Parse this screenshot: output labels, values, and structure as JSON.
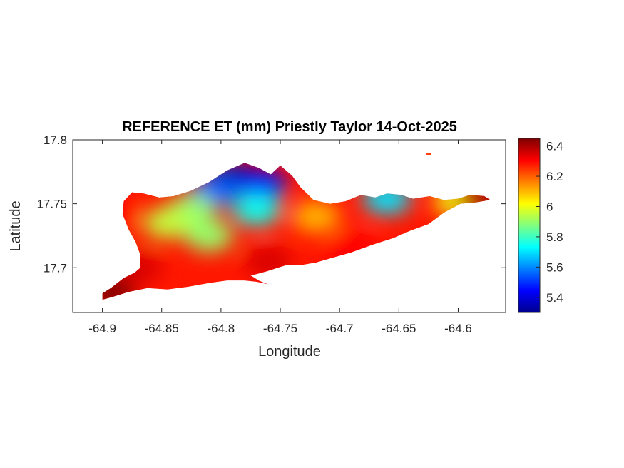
{
  "chart_data": {
    "type": "heatmap",
    "title": "REFERENCE ET (mm) Priestly Taylor 14-Oct-2025",
    "xlabel": "Longitude",
    "ylabel": "Latitude",
    "xlim": [
      -64.925,
      -64.56
    ],
    "ylim": [
      17.665,
      17.8
    ],
    "xticks": [
      -64.9,
      -64.85,
      -64.8,
      -64.75,
      -64.7,
      -64.65,
      -64.6
    ],
    "xtick_labels": [
      "-64.9",
      "-64.85",
      "-64.8",
      "-64.75",
      "-64.7",
      "-64.65",
      "-64.6"
    ],
    "yticks": [
      17.7,
      17.75,
      17.8
    ],
    "ytick_labels": [
      "17.7",
      "17.75",
      "17.8"
    ],
    "colormap": "jet",
    "clim": [
      5.3,
      6.45
    ],
    "colorbar_ticks": [
      5.4,
      5.6,
      5.8,
      6.0,
      6.2,
      6.4
    ],
    "colorbar_tick_labels": [
      "5.4",
      "5.6",
      "5.8",
      "6",
      "6.2",
      "6.4"
    ],
    "region_outline_lonlat": [
      [
        -64.9,
        17.68
      ],
      [
        -64.893,
        17.684
      ],
      [
        -64.882,
        17.692
      ],
      [
        -64.873,
        17.696
      ],
      [
        -64.868,
        17.7
      ],
      [
        -64.868,
        17.71
      ],
      [
        -64.872,
        17.72
      ],
      [
        -64.878,
        17.73
      ],
      [
        -64.883,
        17.742
      ],
      [
        -64.882,
        17.752
      ],
      [
        -64.875,
        17.759
      ],
      [
        -64.865,
        17.758
      ],
      [
        -64.852,
        17.755
      ],
      [
        -64.84,
        17.756
      ],
      [
        -64.826,
        17.76
      ],
      [
        -64.81,
        17.767
      ],
      [
        -64.795,
        17.776
      ],
      [
        -64.78,
        17.782
      ],
      [
        -64.768,
        17.778
      ],
      [
        -64.758,
        17.773
      ],
      [
        -64.75,
        17.78
      ],
      [
        -64.74,
        17.772
      ],
      [
        -64.733,
        17.763
      ],
      [
        -64.722,
        17.753
      ],
      [
        -64.708,
        17.75
      ],
      [
        -64.695,
        17.752
      ],
      [
        -64.682,
        17.757
      ],
      [
        -64.67,
        17.755
      ],
      [
        -64.66,
        17.758
      ],
      [
        -64.648,
        17.757
      ],
      [
        -64.638,
        17.754
      ],
      [
        -64.624,
        17.756
      ],
      [
        -64.612,
        17.753
      ],
      [
        -64.6,
        17.754
      ],
      [
        -64.59,
        17.757
      ],
      [
        -64.578,
        17.756
      ],
      [
        -64.573,
        17.753
      ],
      [
        -64.585,
        17.751
      ],
      [
        -64.598,
        17.75
      ],
      [
        -64.612,
        17.743
      ],
      [
        -64.625,
        17.734
      ],
      [
        -64.64,
        17.729
      ],
      [
        -64.655,
        17.723
      ],
      [
        -64.672,
        17.718
      ],
      [
        -64.69,
        17.712
      ],
      [
        -64.705,
        17.708
      ],
      [
        -64.72,
        17.704
      ],
      [
        -64.733,
        17.702
      ],
      [
        -64.745,
        17.702
      ],
      [
        -64.752,
        17.7
      ],
      [
        -64.762,
        17.697
      ],
      [
        -64.77,
        17.695
      ],
      [
        -64.775,
        17.694
      ],
      [
        -64.768,
        17.69
      ],
      [
        -64.76,
        17.687
      ],
      [
        -64.77,
        17.689
      ],
      [
        -64.78,
        17.69
      ],
      [
        -64.795,
        17.69
      ],
      [
        -64.81,
        17.688
      ],
      [
        -64.828,
        17.685
      ],
      [
        -64.845,
        17.683
      ],
      [
        -64.862,
        17.684
      ],
      [
        -64.878,
        17.681
      ],
      [
        -64.892,
        17.677
      ],
      [
        -64.9,
        17.675
      ]
    ],
    "field_centers": [
      {
        "lon": -64.79,
        "lat": 17.77,
        "value": 5.35
      },
      {
        "lon": -64.765,
        "lat": 17.765,
        "value": 5.45
      },
      {
        "lon": -64.805,
        "lat": 17.76,
        "value": 5.55
      },
      {
        "lon": -64.77,
        "lat": 17.745,
        "value": 5.75
      },
      {
        "lon": -64.825,
        "lat": 17.745,
        "value": 5.9
      },
      {
        "lon": -64.845,
        "lat": 17.735,
        "value": 5.95
      },
      {
        "lon": -64.81,
        "lat": 17.725,
        "value": 5.9
      },
      {
        "lon": -64.66,
        "lat": 17.754,
        "value": 5.7
      },
      {
        "lon": -64.6,
        "lat": 17.752,
        "value": 6.0
      },
      {
        "lon": -64.72,
        "lat": 17.74,
        "value": 6.1
      },
      {
        "lon": -64.89,
        "lat": 17.74,
        "value": 6.3
      },
      {
        "lon": -64.87,
        "lat": 17.7,
        "value": 6.35
      },
      {
        "lon": -64.893,
        "lat": 17.681,
        "value": 6.45
      },
      {
        "lon": -64.76,
        "lat": 17.705,
        "value": 6.35
      },
      {
        "lon": -64.69,
        "lat": 17.715,
        "value": 6.3
      },
      {
        "lon": -64.58,
        "lat": 17.755,
        "value": 6.4
      }
    ]
  }
}
